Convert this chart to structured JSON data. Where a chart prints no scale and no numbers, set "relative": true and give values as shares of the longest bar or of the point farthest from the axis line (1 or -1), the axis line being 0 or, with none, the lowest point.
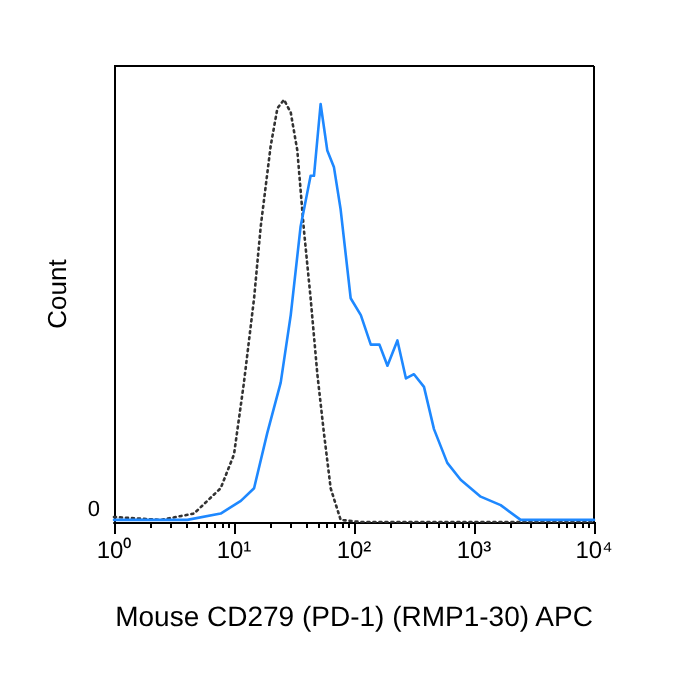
{
  "chart_data": {
    "type": "line",
    "relative": true,
    "xlabel": "Mouse CD279 (PD-1) (RMP1-30) APC",
    "ylabel": "Count",
    "log": "x",
    "xlim": [
      1,
      10000
    ],
    "xticks": [
      {
        "value": 1,
        "label": "10⁰"
      },
      {
        "value": 10,
        "label": "10¹"
      },
      {
        "value": 100,
        "label": "10²"
      },
      {
        "value": 1000,
        "label": "10³"
      },
      {
        "value": 10000,
        "label": "10⁴"
      }
    ],
    "marker": "none",
    "grid": false,
    "annotations": [
      "0"
    ],
    "series": [
      {
        "color": "#333333",
        "line_style": "dotted",
        "x": [
          1,
          2.45,
          4.64,
          7.74,
          10,
          12.1,
          14.7,
          16.7,
          20.2,
          23,
          26.1,
          29.7,
          33.7,
          38.3,
          43.5,
          49.5,
          56.2,
          63.9,
          77.4,
          114,
          10000
        ],
        "values": [
          0.012,
          0.005,
          0.02,
          0.08,
          0.16,
          0.33,
          0.53,
          0.7,
          0.89,
          0.98,
          1,
          0.97,
          0.88,
          0.69,
          0.53,
          0.35,
          0.21,
          0.08,
          0.005,
          0,
          0
        ]
      },
      {
        "color": "#1e88ff",
        "line_style": "solid",
        "x": [
          1,
          4.08,
          7.74,
          11.4,
          14.7,
          18.9,
          24.5,
          29.7,
          35.9,
          43.5,
          46.4,
          52.7,
          59.9,
          68.1,
          77.4,
          93.8,
          114,
          138,
          163,
          190,
          230,
          271,
          316,
          383,
          464,
          599,
          774,
          1137,
          1668,
          2448,
          10000
        ],
        "values": [
          0.005,
          0.005,
          0.02,
          0.05,
          0.08,
          0.21,
          0.33,
          0.49,
          0.7,
          0.82,
          0.82,
          0.99,
          0.88,
          0.84,
          0.74,
          0.53,
          0.49,
          0.42,
          0.42,
          0.37,
          0.43,
          0.34,
          0.35,
          0.32,
          0.22,
          0.14,
          0.1,
          0.06,
          0.04,
          0.005,
          0.005
        ]
      }
    ]
  }
}
